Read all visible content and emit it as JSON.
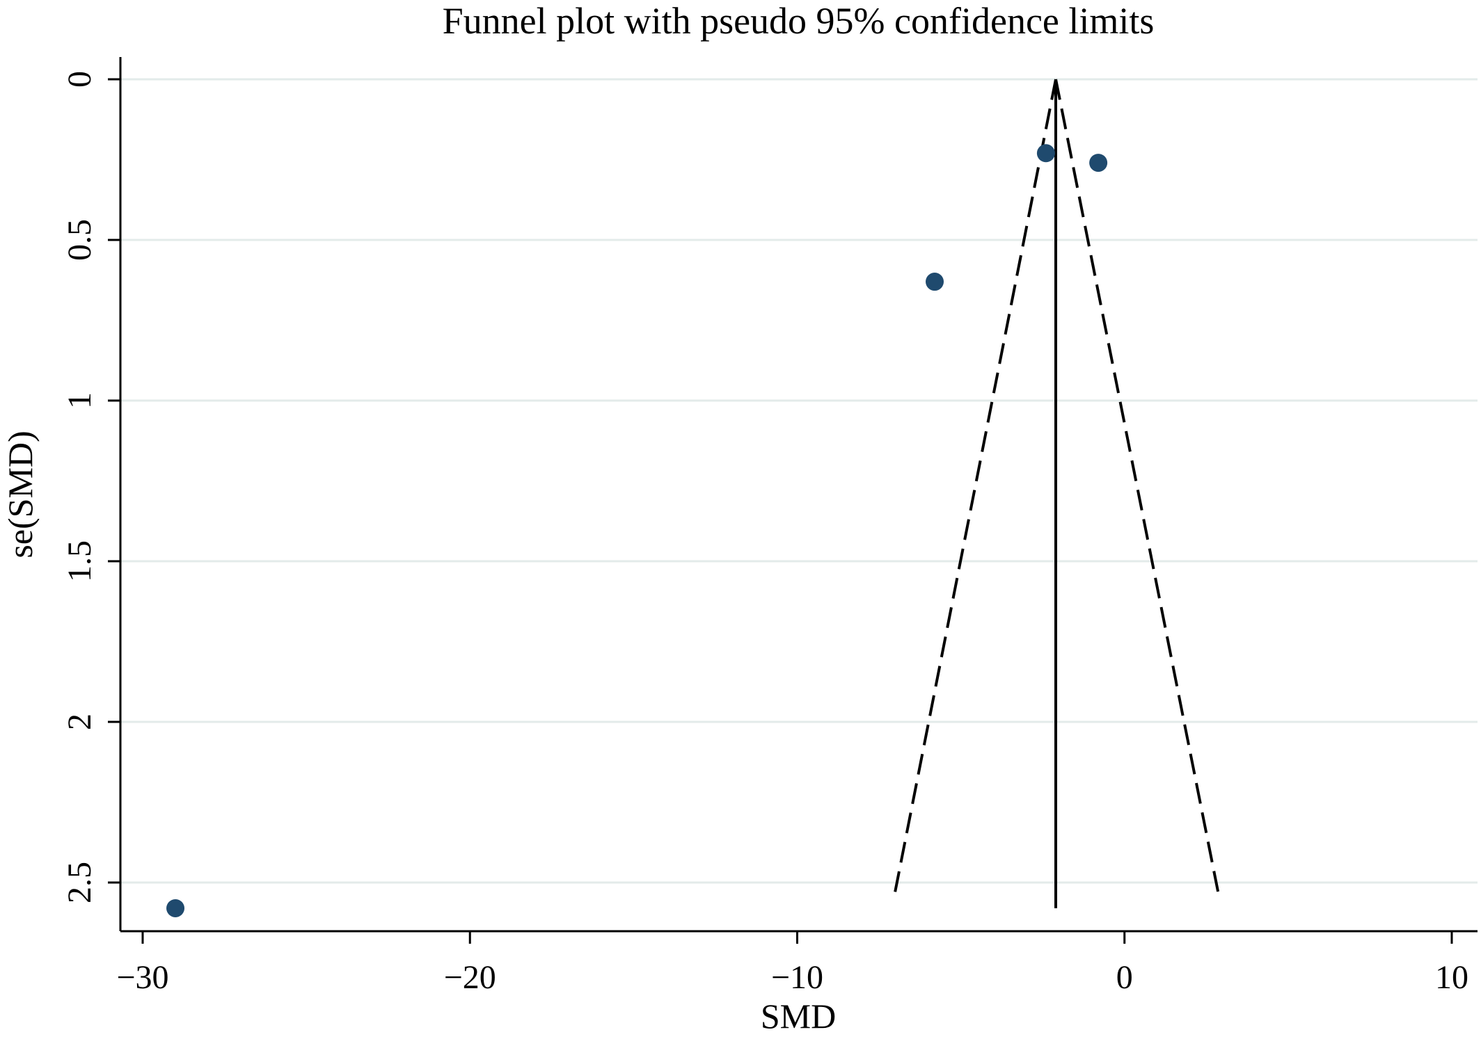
{
  "chart_data": {
    "type": "scatter",
    "title": "Funnel plot with pseudo 95% confidence limits",
    "xlabel": "SMD",
    "ylabel": "se(SMD)",
    "xlim": [
      -30.6,
      10.7
    ],
    "ylim": [
      0,
      2.65
    ],
    "y_reversed": true,
    "x_ticks": [
      {
        "value": -30,
        "label": "−30"
      },
      {
        "value": -20,
        "label": "−20"
      },
      {
        "value": -10,
        "label": "−10"
      },
      {
        "value": 0,
        "label": "0"
      },
      {
        "value": 10,
        "label": "10"
      }
    ],
    "y_ticks": [
      {
        "value": 0,
        "label": "0"
      },
      {
        "value": 0.5,
        "label": "0.5"
      },
      {
        "value": 1,
        "label": "1"
      },
      {
        "value": 1.5,
        "label": "1.5"
      },
      {
        "value": 2,
        "label": "2"
      },
      {
        "value": 2.5,
        "label": "2.5"
      }
    ],
    "grid": "horizontal",
    "points": [
      {
        "x": -2.4,
        "y": 0.23
      },
      {
        "x": -0.8,
        "y": 0.26
      },
      {
        "x": -5.8,
        "y": 0.63
      },
      {
        "x": -29.0,
        "y": 2.58
      }
    ],
    "pooled_effect": -2.1,
    "pooled_line_se_range": [
      0,
      2.58
    ],
    "ci_lines": [
      {
        "x": [
          -2.1,
          -7.05
        ],
        "y": [
          0,
          2.55
        ]
      },
      {
        "x": [
          -2.1,
          2.9
        ],
        "y": [
          0,
          2.55
        ]
      }
    ],
    "colors": {
      "point": "#1f4a6e",
      "grid": "#e3ebea",
      "axis": "#000000"
    }
  }
}
